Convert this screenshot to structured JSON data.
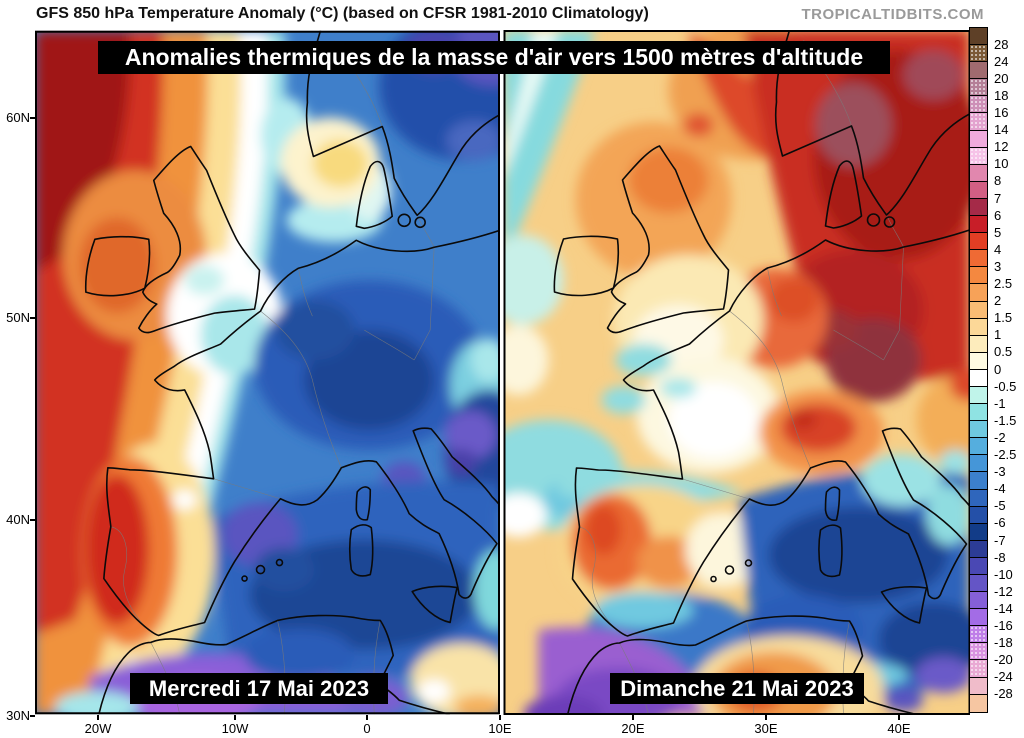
{
  "header": {
    "title": "GFS 850 hPa Temperature Anomaly (°C) (based on CFSR 1981-2010 Climatology)",
    "watermark": "TROPICALTIDBITS.COM"
  },
  "banner": {
    "text": "Anomalies thermiques de la masse d'air vers 1500 mètres d'altitude"
  },
  "panels": [
    {
      "id": "left",
      "date_label": "Mercredi 17 Mai 2023",
      "summary": "Warm anomaly over the eastern Atlantic, Ireland and Portugal; cold anomaly (blues/purples) over most of Europe, the Mediterranean and northwest Africa."
    },
    {
      "id": "right",
      "date_label": "Dimanche 21 Mai 2023",
      "summary": "Strong warm anomaly over Scandinavia, central and eastern Europe; near-normal over France and the UK; cold anomaly over the Mediterranean, Iberian coasts and Morocco."
    }
  ],
  "axes": {
    "lat_labels": [
      "60N",
      "50N",
      "40N",
      "30N"
    ],
    "lon_labels": [
      "20W",
      "10W",
      "0",
      "10E",
      "20E",
      "30E",
      "40E"
    ]
  },
  "colorbar": {
    "unit": "°C",
    "labels": [
      "28",
      "24",
      "20",
      "18",
      "16",
      "14",
      "12",
      "10",
      "8",
      "7",
      "6",
      "5",
      "4",
      "3",
      "2.5",
      "2",
      "1.5",
      "1",
      "0.5",
      "0",
      "-0.5",
      "-1",
      "-1.5",
      "-2",
      "-2.5",
      "-3",
      "-4",
      "-5",
      "-6",
      "-7",
      "-8",
      "-10",
      "-12",
      "-14",
      "-16",
      "-18",
      "-20",
      "-24",
      "-28"
    ],
    "colors": [
      "#5e4027",
      "#7b5a36",
      "#a06b6f",
      "#b47f97",
      "#cd8fb7",
      "#e3a3cf",
      "#f0abdd",
      "#f6c3e8",
      "#e187ae",
      "#d25f84",
      "#a52a48",
      "#c81e28",
      "#e23e24",
      "#ef6a34",
      "#f48840",
      "#f7a258",
      "#fabc74",
      "#fcd898",
      "#fdecbc",
      "#fffbe2",
      "#ffffff",
      "#c0f4ea",
      "#8fe3e3",
      "#6fc9e0",
      "#55aede",
      "#4596d8",
      "#3c80cc",
      "#2f66bc",
      "#2450a8",
      "#123c88",
      "#2c3c96",
      "#4a48b4",
      "#6455c6",
      "#8560d8",
      "#a36ce6",
      "#bf7ee8",
      "#d893e0",
      "#e9a9d4",
      "#f0bcca",
      "#f6c6a2"
    ],
    "dotted_segments": [
      1,
      3,
      4,
      5,
      7,
      35,
      36,
      37
    ]
  },
  "colors": {
    "banner_bg": "#000000",
    "banner_fg": "#ffffff",
    "watermark_fg": "#9a9a9a",
    "coastline": "#0a0a0a"
  }
}
